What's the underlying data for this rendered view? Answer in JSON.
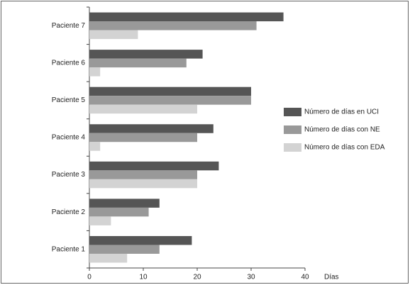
{
  "chart_data": {
    "type": "barh",
    "xlabel": "Días",
    "categories": [
      "Paciente 1",
      "Paciente 2",
      "Paciente 3",
      "Paciente 4",
      "Paciente 5",
      "Paciente 6",
      "Paciente 7"
    ],
    "series": [
      {
        "name": "Número de días en UCI",
        "color": "#555555",
        "values": [
          19,
          13,
          24,
          23,
          30,
          21,
          36
        ]
      },
      {
        "name": "Número de días con NE",
        "color": "#999999",
        "values": [
          13,
          11,
          20,
          20,
          30,
          18,
          31
        ]
      },
      {
        "name": "Número de días con EDA",
        "color": "#d3d3d3",
        "values": [
          7,
          4,
          20,
          2,
          20,
          2,
          9
        ]
      }
    ],
    "xlim": [
      0,
      40
    ],
    "xticks": [
      0,
      10,
      20,
      30,
      40
    ],
    "legend": "right"
  }
}
